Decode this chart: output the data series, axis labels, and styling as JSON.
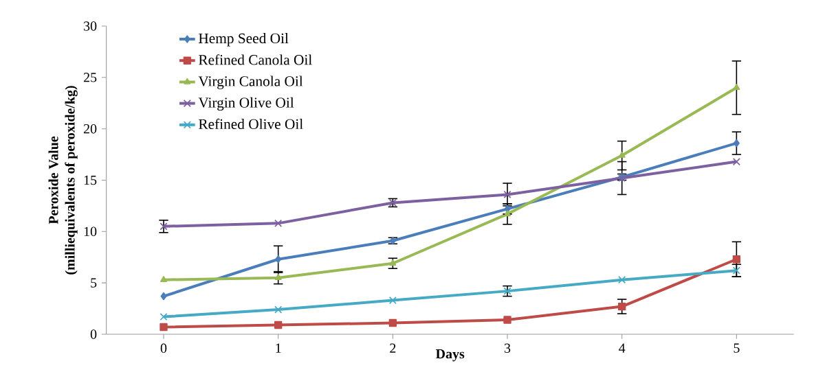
{
  "chart_data": {
    "type": "line",
    "xlabel": "Days",
    "ylabel": "Peroxide Value\n(milliequivalents of peroxide/kg)",
    "categories": [
      "0",
      "1",
      "2",
      "3",
      "4",
      "5"
    ],
    "ylim": [
      0,
      30
    ],
    "yticks": [
      0,
      5,
      10,
      15,
      20,
      25,
      30
    ],
    "legend": "top left",
    "grid": false,
    "line_style": "solid",
    "series": [
      {
        "name": "Hemp Seed Oil",
        "color": "#4a7ebb",
        "marker": "diamond",
        "values": [
          3.7,
          7.3,
          9.1,
          12.2,
          15.3,
          18.6
        ],
        "errors": [
          null,
          1.3,
          0.3,
          0.5,
          0.3,
          1.1
        ]
      },
      {
        "name": "Refined Canola Oil",
        "color": "#be4b48",
        "marker": "square",
        "values": [
          0.7,
          0.9,
          1.1,
          1.4,
          2.7,
          7.3
        ],
        "errors": [
          null,
          null,
          null,
          null,
          0.7,
          1.7
        ]
      },
      {
        "name": "Virgin Canola Oil",
        "color": "#98b954",
        "marker": "triangle",
        "values": [
          5.3,
          5.5,
          6.9,
          11.7,
          17.4,
          24.0
        ],
        "errors": [
          null,
          0.6,
          0.5,
          1.0,
          1.4,
          2.6
        ]
      },
      {
        "name": "Virgin Olive Oil",
        "color": "#7d60a0",
        "marker": "cross",
        "values": [
          10.5,
          10.8,
          12.8,
          13.6,
          15.2,
          16.8
        ],
        "errors": [
          0.6,
          null,
          0.4,
          1.1,
          1.6,
          null
        ]
      },
      {
        "name": "Refined Olive Oil",
        "color": "#46aac5",
        "marker": "cross",
        "values": [
          1.7,
          2.4,
          3.3,
          4.2,
          5.3,
          6.2
        ],
        "errors": [
          null,
          null,
          null,
          0.5,
          null,
          0.6
        ]
      }
    ]
  }
}
